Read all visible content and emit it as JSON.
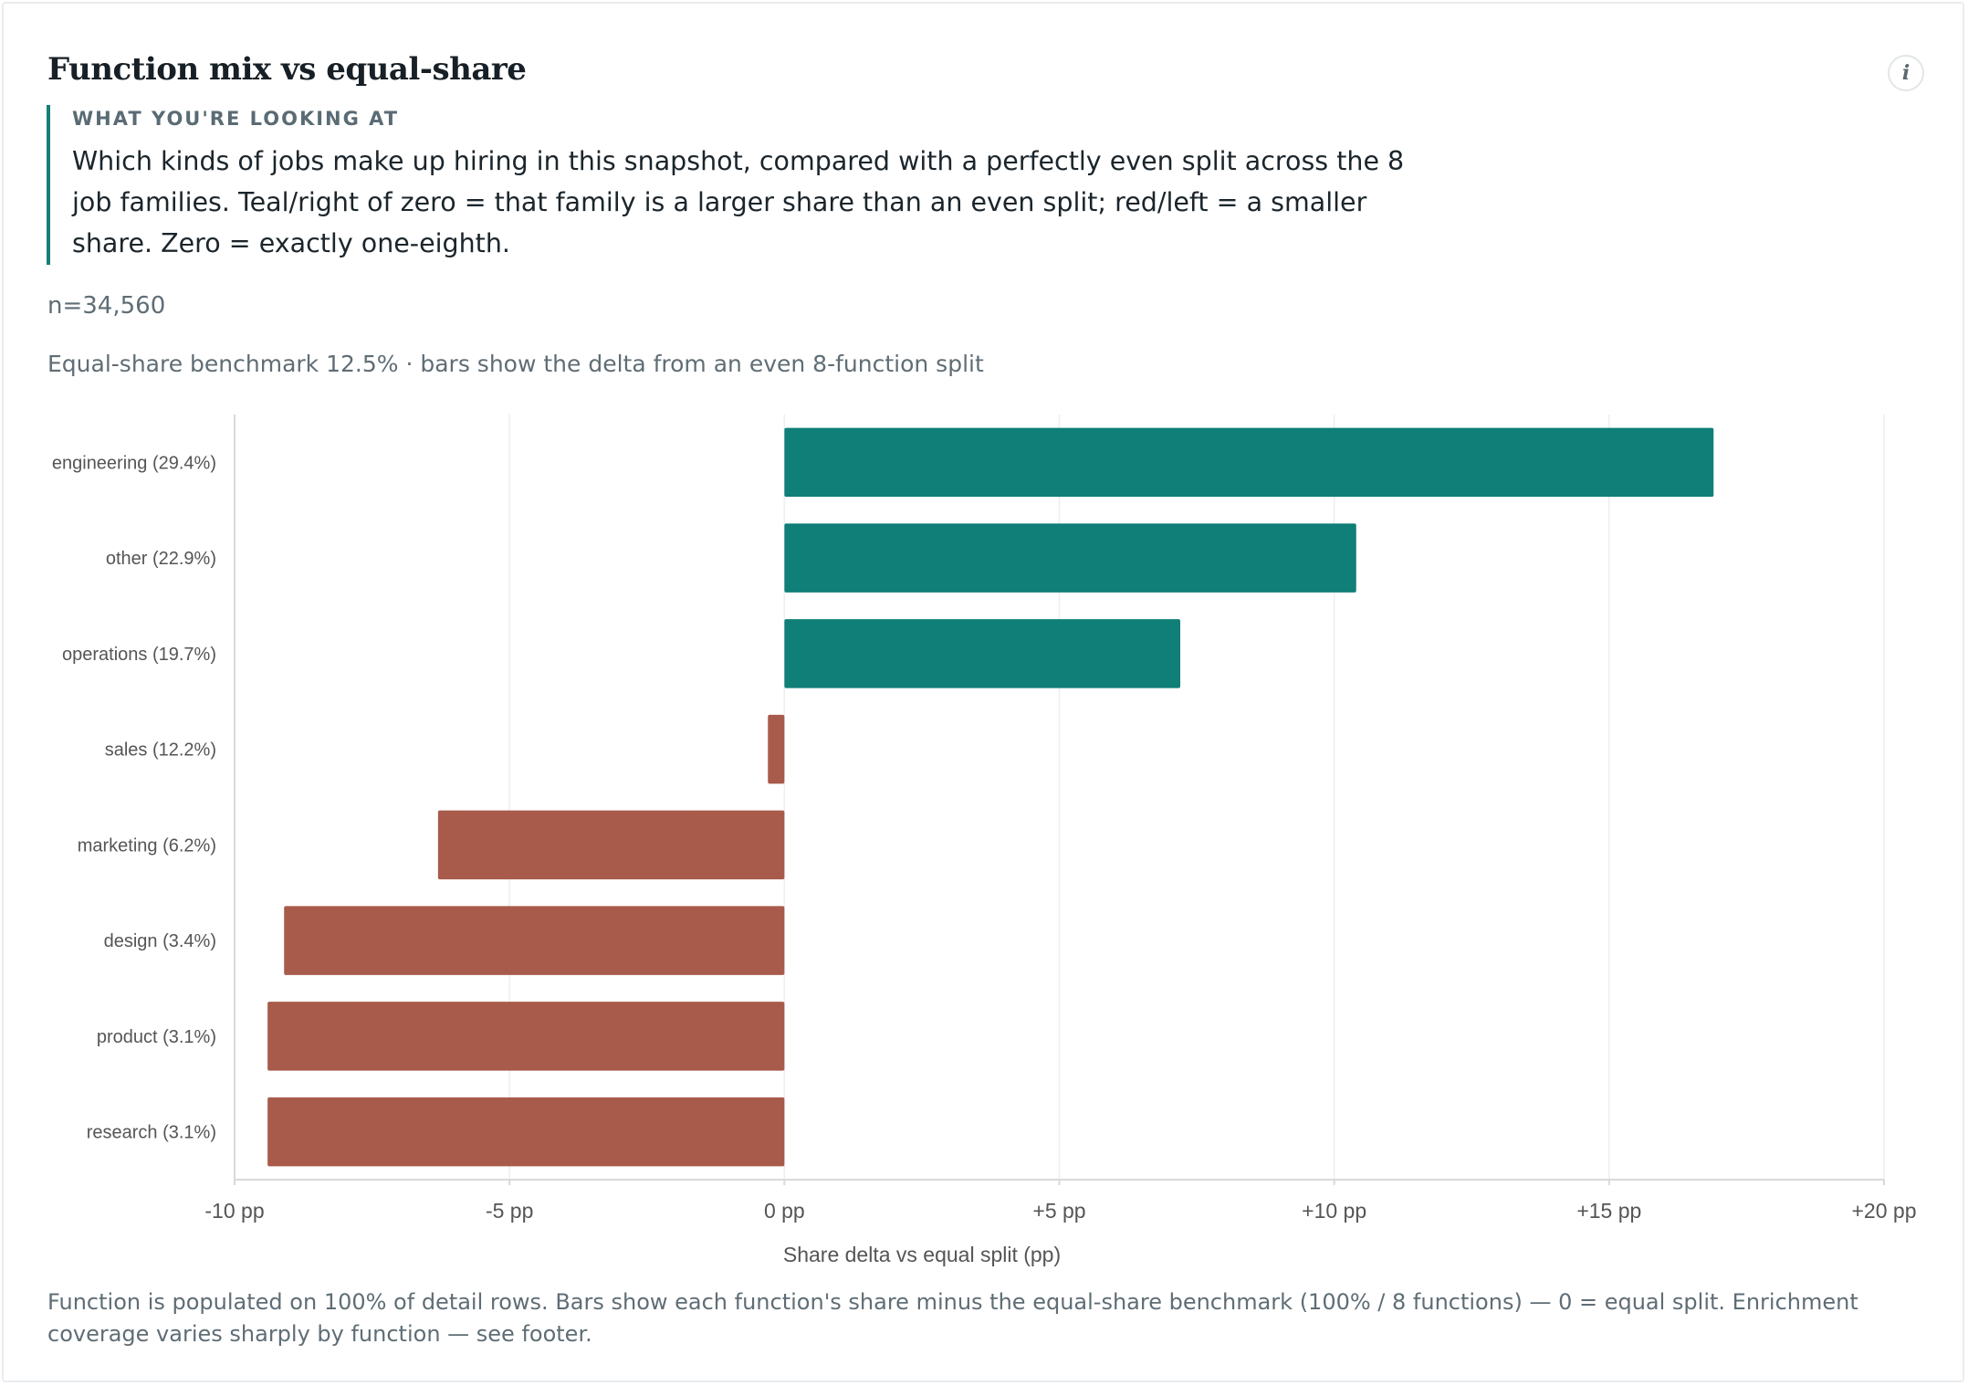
{
  "header": {
    "title": "Function mix vs equal-share",
    "info_label": "i"
  },
  "explainer": {
    "kicker": "WHAT YOU'RE LOOKING AT",
    "body": "Which kinds of jobs make up hiring in this snapshot, compared with a perfectly even split across the 8 job families. Teal/right of zero = that family is a larger share than an even split; red/left = a smaller share. Zero = exactly one-eighth."
  },
  "sample_size": "n=34,560",
  "benchmark_note": "Equal-share benchmark 12.5% · bars show the delta from an even 8-function split",
  "footnote": "Function is populated on 100% of detail rows. Bars show each function's share minus the equal-share benchmark (100% / 8 functions) — 0 = equal split. Enrichment coverage varies sharply by function — see footer.",
  "colors": {
    "positive": "#0f7f77",
    "negative": "#a85b4b",
    "grid": "#eeeeee",
    "axis": "#d9d9d9"
  },
  "chart_data": {
    "type": "bar",
    "orientation": "horizontal",
    "categories": [
      "engineering (29.4%)",
      "other (22.9%)",
      "operations (19.7%)",
      "sales (12.2%)",
      "marketing (6.2%)",
      "design (3.4%)",
      "product (3.1%)",
      "research (3.1%)"
    ],
    "values": [
      16.9,
      10.4,
      7.2,
      -0.3,
      -6.3,
      -9.1,
      -9.4,
      -9.4
    ],
    "xlim": [
      -10,
      20
    ],
    "xticks": [
      -10,
      -5,
      0,
      5,
      10,
      15,
      20
    ],
    "xtick_labels": [
      "-10 pp",
      "-5 pp",
      "0 pp",
      "+5 pp",
      "+10 pp",
      "+15 pp",
      "+20 pp"
    ],
    "xlabel": "Share delta vs equal split (pp)",
    "ylabel": "",
    "grid": "vertical",
    "legend": "none"
  }
}
